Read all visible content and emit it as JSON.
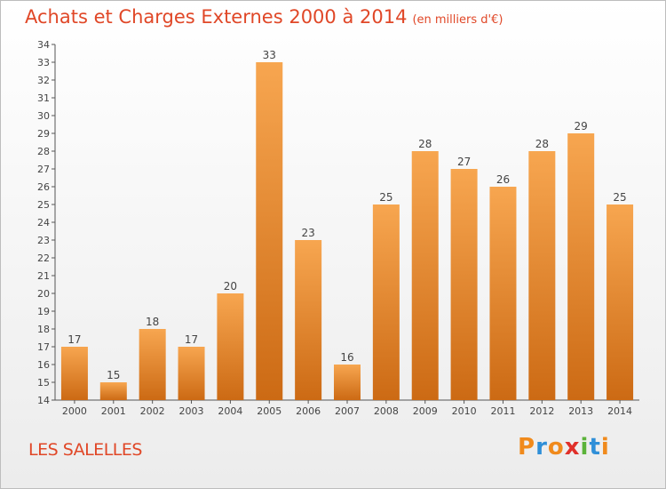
{
  "title": "Achats et Charges Externes 2000 à 2014",
  "subtitle": "(en milliers d'€)",
  "location": "LES SALELLES",
  "logo_text": "Proxiti",
  "colors": {
    "bar_light": "#f7a650",
    "bar_dark": "#cc6a14",
    "title": "#e04727",
    "axis": "#555555"
  },
  "chart_data": {
    "type": "bar",
    "categories": [
      "2000",
      "2001",
      "2002",
      "2003",
      "2004",
      "2005",
      "2006",
      "2007",
      "2008",
      "2009",
      "2010",
      "2011",
      "2012",
      "2013",
      "2014"
    ],
    "values": [
      17,
      15,
      18,
      17,
      20,
      33,
      23,
      16,
      25,
      28,
      27,
      26,
      28,
      29,
      25
    ],
    "ylim": [
      14,
      34
    ],
    "yticks": [
      14,
      15,
      16,
      17,
      18,
      19,
      20,
      21,
      22,
      23,
      24,
      25,
      26,
      27,
      28,
      29,
      30,
      31,
      32,
      33,
      34
    ],
    "grid": false
  }
}
